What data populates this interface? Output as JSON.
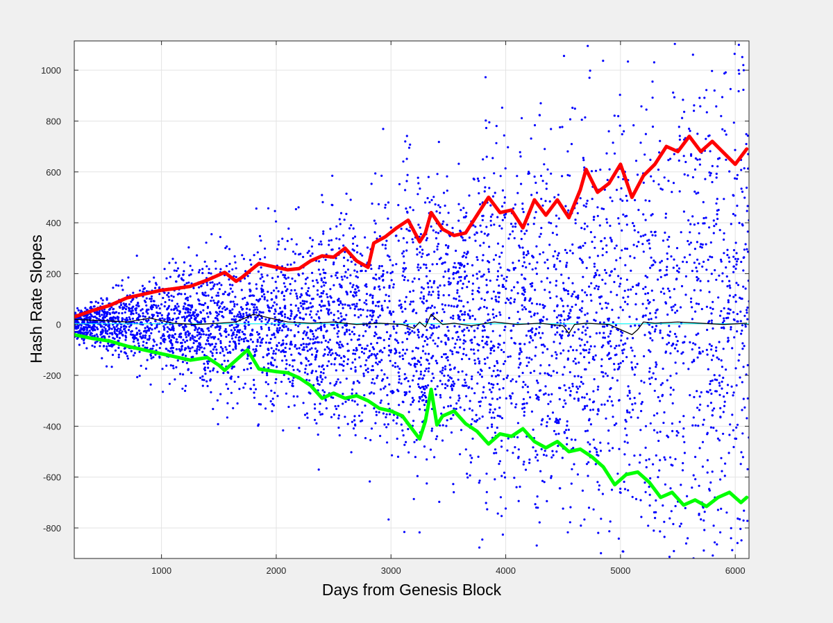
{
  "chart_data": {
    "type": "scatter",
    "title": "",
    "xlabel": "Days from Genesis Block",
    "ylabel": "Hash Rate Slopes",
    "xlim": [
      240,
      6120
    ],
    "ylim": [
      -920,
      1115
    ],
    "xticks": [
      1000,
      2000,
      3000,
      4000,
      5000,
      6000
    ],
    "yticks": [
      -800,
      -600,
      -400,
      -200,
      0,
      200,
      400,
      600,
      800,
      1000
    ],
    "xtick_labels": [
      "1000",
      "2000",
      "3000",
      "4000",
      "5000",
      "6000"
    ],
    "ytick_labels": [
      "-800",
      "-600",
      "-400",
      "-200",
      "0",
      "200",
      "400",
      "600",
      "800",
      "1000"
    ],
    "grid": true,
    "legend": false,
    "colors": {
      "figure_bg": "#f0f0f0",
      "axes_bg": "#ffffff",
      "grid": "#e3e3e3",
      "scatter": "#0000ff",
      "upper": "#ff0000",
      "lower": "#00ff00",
      "mean": "#000000",
      "zero": "#00ffff"
    },
    "series": [
      {
        "kind": "line",
        "color": "#ff0000",
        "x": [
          240,
          400,
          550,
          700,
          850,
          1000,
          1100,
          1250,
          1400,
          1550,
          1650,
          1700,
          1850,
          2000,
          2100,
          2200,
          2300,
          2400,
          2500,
          2600,
          2700,
          2800,
          2850,
          2950,
          3050,
          3150,
          3250,
          3300,
          3350,
          3450,
          3550,
          3650,
          3750,
          3850,
          3950,
          4050,
          4150,
          4250,
          4350,
          4450,
          4550,
          4650,
          4700,
          4800,
          4900,
          5000,
          5100,
          5200,
          5300,
          5400,
          5500,
          5600,
          5700,
          5800,
          5900,
          6000,
          6100
        ],
        "values": [
          30,
          55,
          75,
          105,
          120,
          135,
          140,
          150,
          175,
          205,
          170,
          185,
          240,
          225,
          215,
          220,
          250,
          270,
          265,
          300,
          250,
          225,
          320,
          345,
          380,
          410,
          325,
          360,
          440,
          375,
          350,
          360,
          430,
          500,
          440,
          450,
          380,
          490,
          430,
          490,
          420,
          530,
          610,
          520,
          555,
          630,
          500,
          585,
          630,
          700,
          680,
          740,
          680,
          720,
          675,
          630,
          690
        ]
      },
      {
        "kind": "line",
        "color": "#00ff00",
        "x": [
          240,
          400,
          550,
          700,
          850,
          1000,
          1100,
          1250,
          1400,
          1500,
          1550,
          1650,
          1750,
          1850,
          2000,
          2100,
          2200,
          2300,
          2400,
          2500,
          2600,
          2700,
          2800,
          2900,
          3000,
          3100,
          3200,
          3250,
          3300,
          3350,
          3400,
          3450,
          3550,
          3650,
          3750,
          3850,
          3950,
          4050,
          4150,
          4250,
          4350,
          4450,
          4550,
          4650,
          4750,
          4850,
          4950,
          5050,
          5150,
          5250,
          5350,
          5450,
          5550,
          5650,
          5750,
          5850,
          5950,
          6050,
          6100
        ],
        "values": [
          -40,
          -55,
          -65,
          -85,
          -100,
          -115,
          -125,
          -140,
          -130,
          -160,
          -180,
          -140,
          -100,
          -175,
          -185,
          -190,
          -210,
          -240,
          -290,
          -270,
          -290,
          -280,
          -300,
          -330,
          -340,
          -360,
          -420,
          -450,
          -380,
          -255,
          -395,
          -360,
          -340,
          -390,
          -420,
          -470,
          -430,
          -440,
          -410,
          -460,
          -485,
          -460,
          -500,
          -490,
          -520,
          -560,
          -630,
          -590,
          -580,
          -620,
          -680,
          -660,
          -710,
          -690,
          -715,
          -680,
          -660,
          -700,
          -680
        ]
      },
      {
        "kind": "line",
        "color": "#000000",
        "x": [
          240,
          500,
          700,
          900,
          1100,
          1300,
          1500,
          1650,
          1800,
          1950,
          2100,
          2300,
          2500,
          2700,
          2900,
          3100,
          3200,
          3250,
          3300,
          3350,
          3450,
          3550,
          3700,
          3900,
          4100,
          4300,
          4500,
          4550,
          4600,
          4700,
          4900,
          5100,
          5150,
          5200,
          5300,
          5500,
          5700,
          5900,
          6100
        ],
        "values": [
          20,
          15,
          10,
          25,
          5,
          0,
          5,
          10,
          40,
          25,
          10,
          5,
          10,
          0,
          5,
          0,
          -15,
          10,
          -10,
          40,
          0,
          5,
          -5,
          10,
          0,
          5,
          -5,
          -35,
          0,
          5,
          0,
          -40,
          -20,
          10,
          5,
          10,
          5,
          0,
          5
        ]
      },
      {
        "kind": "line",
        "color": "#00ffff",
        "x": [
          240,
          6120
        ],
        "values": [
          3,
          3
        ]
      }
    ]
  }
}
